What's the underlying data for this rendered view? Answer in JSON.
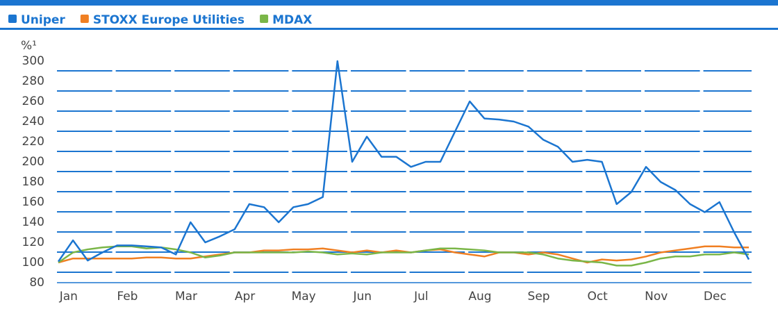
{
  "chart_data": {
    "type": "line",
    "y_unit": "%¹",
    "categories": [
      null,
      "Jan",
      null,
      null,
      null,
      "Feb",
      null,
      null,
      null,
      "Mar",
      null,
      null,
      null,
      "Apr",
      null,
      null,
      null,
      "May",
      null,
      null,
      null,
      "Jun",
      null,
      null,
      null,
      "Jul",
      null,
      null,
      null,
      "Aug",
      null,
      null,
      null,
      "Sep",
      null,
      null,
      null,
      "Oct",
      null,
      null,
      null,
      "Nov",
      null,
      null,
      null,
      "Dec",
      null,
      null
    ],
    "series": [
      {
        "name": "Uniper",
        "color": "#1b75d0",
        "values": [
          101,
          122,
          102,
          110,
          117,
          117,
          116,
          115,
          108,
          140,
          120,
          126,
          133,
          158,
          155,
          140,
          155,
          158,
          165,
          300,
          200,
          225,
          205,
          205,
          195,
          200,
          200,
          230,
          260,
          243,
          242,
          240,
          235,
          222,
          215,
          200,
          202,
          200,
          158,
          170,
          195,
          180,
          172,
          158,
          150,
          160,
          130,
          103
        ]
      },
      {
        "name": "STOXX Europe Utilities",
        "color": "#f07f22",
        "values": [
          100,
          104,
          104,
          104,
          104,
          104,
          105,
          105,
          104,
          104,
          106,
          108,
          110,
          110,
          112,
          112,
          113,
          113,
          114,
          112,
          110,
          112,
          110,
          112,
          110,
          112,
          113,
          110,
          108,
          106,
          110,
          110,
          108,
          110,
          108,
          104,
          100,
          103,
          102,
          103,
          106,
          110,
          112,
          114,
          116,
          116,
          115,
          115
        ]
      },
      {
        "name": "MDAX",
        "color": "#7ab648",
        "values": [
          100,
          110,
          113,
          115,
          116,
          116,
          114,
          115,
          113,
          110,
          105,
          107,
          110,
          110,
          110,
          110,
          110,
          111,
          110,
          108,
          109,
          108,
          110,
          110,
          110,
          112,
          114,
          114,
          113,
          112,
          110,
          110,
          110,
          108,
          104,
          102,
          101,
          100,
          97,
          97,
          100,
          104,
          106,
          106,
          108,
          108,
          110,
          108
        ]
      }
    ],
    "ylim": [
      80,
      300
    ],
    "yticks": [
      80,
      100,
      120,
      140,
      160,
      180,
      200,
      220,
      240,
      260,
      280,
      300
    ],
    "grid": true
  }
}
